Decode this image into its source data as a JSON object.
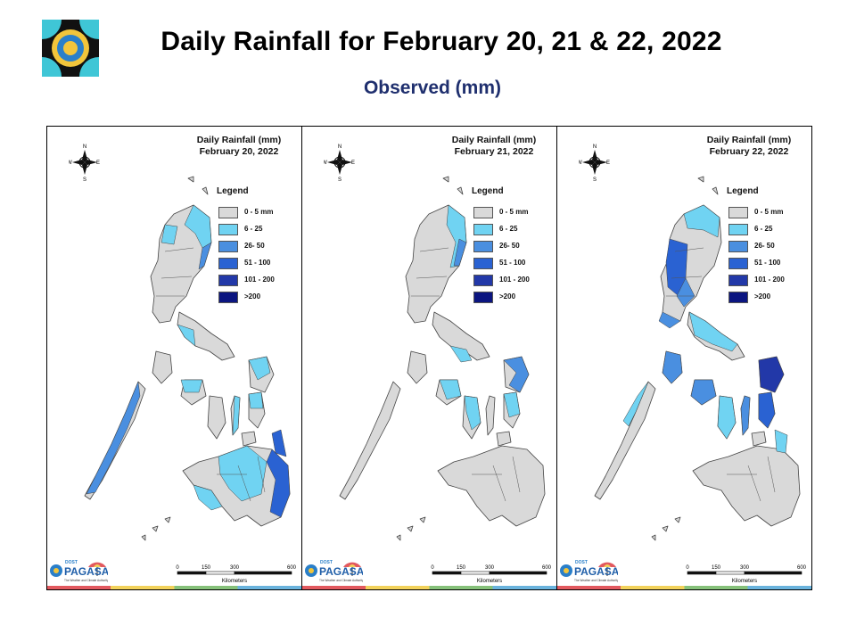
{
  "header": {
    "title": "Daily Rainfall for February 20, 21 & 22, 2022",
    "subtitle": "Observed (mm)"
  },
  "panels": [
    {
      "title_line1": "Daily Rainfall (mm)",
      "title_line2": "February 20, 2022"
    },
    {
      "title_line1": "Daily Rainfall (mm)",
      "title_line2": "February 21, 2022"
    },
    {
      "title_line1": "Daily Rainfall (mm)",
      "title_line2": "February 22, 2022"
    }
  ],
  "legend": {
    "title": "Legend",
    "items": [
      {
        "label": "0 - 5 mm",
        "color": "#d9d9d9"
      },
      {
        "label": "6 - 25",
        "color": "#70d3f2"
      },
      {
        "label": "26- 50",
        "color": "#4a8fe0"
      },
      {
        "label": "51 - 100",
        "color": "#2a62d2"
      },
      {
        "label": "101 - 200",
        "color": "#2238a8"
      },
      {
        "label": ">200",
        "color": "#0b1580"
      }
    ]
  },
  "compass": {
    "n": "N",
    "s": "S",
    "e": "E",
    "w": "W"
  },
  "scale": {
    "ticks": [
      "0",
      "150",
      "300",
      "600"
    ],
    "unit": "Kilometers"
  },
  "branding": {
    "name": "PAGASA",
    "tag": "DOST",
    "tagline": "The Weather and Climate Authority"
  },
  "colors": {
    "stripe": [
      "#e2595f",
      "#f2d25b",
      "#86c17a",
      "#6ab3dd"
    ]
  }
}
